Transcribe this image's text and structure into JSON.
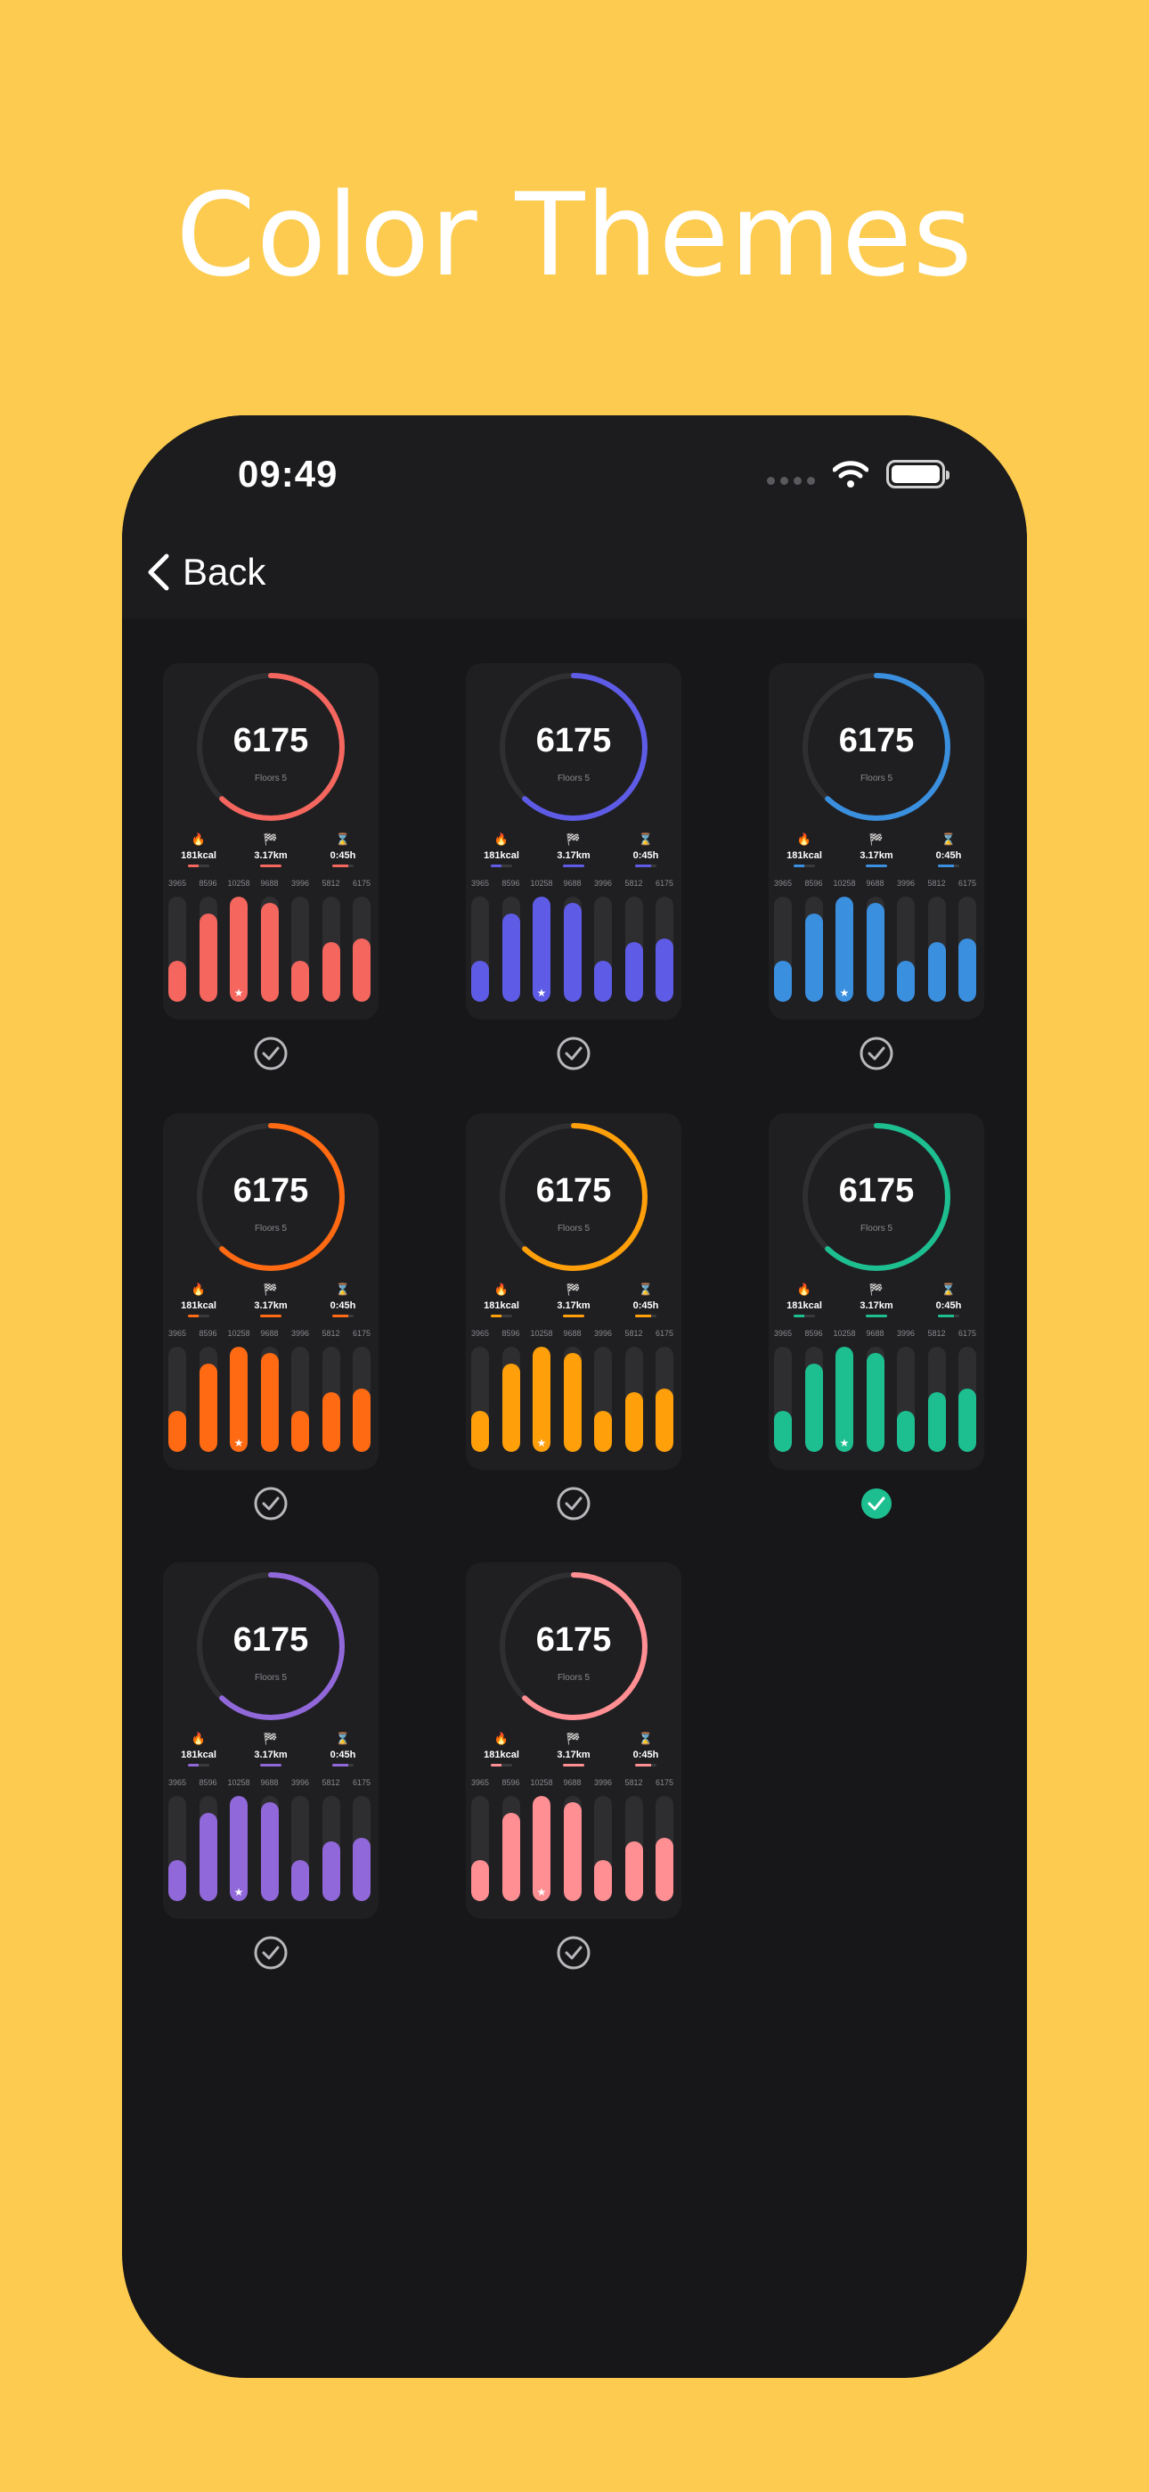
{
  "headline": "Color Themes",
  "status_bar": {
    "time": "09:49"
  },
  "nav": {
    "back_label": "Back"
  },
  "summary": {
    "steps": "6175",
    "floors": "Floors 5",
    "progress": 0.62,
    "stats": [
      {
        "icon": "flame-icon",
        "glyph": "🔥",
        "value": "181kcal",
        "fill": 0.5
      },
      {
        "icon": "flag-icon",
        "glyph": "🏁",
        "value": "3.17km",
        "fill": 1.0
      },
      {
        "icon": "hourglass-icon",
        "glyph": "⌛",
        "value": "0:45h",
        "fill": 0.75
      }
    ],
    "days": [
      {
        "label": "3965",
        "value": 3965
      },
      {
        "label": "8596",
        "value": 8596
      },
      {
        "label": "10258",
        "value": 10258,
        "star": true
      },
      {
        "label": "9688",
        "value": 9688
      },
      {
        "label": "3996",
        "value": 3996
      },
      {
        "label": "5812",
        "value": 5812
      },
      {
        "label": "6175",
        "value": 6175
      }
    ],
    "max_value": 10258
  },
  "themes": [
    {
      "color": "#F4665E",
      "selected": false
    },
    {
      "color": "#5E5CE6",
      "selected": false
    },
    {
      "color": "#3A8FDE",
      "selected": false
    },
    {
      "color": "#FF6A13",
      "selected": false
    },
    {
      "color": "#FF9F0A",
      "selected": false
    },
    {
      "color": "#1DBF90",
      "selected": true
    },
    {
      "color": "#9168DA",
      "selected": false
    },
    {
      "color": "#FF8F93",
      "selected": false
    }
  ]
}
